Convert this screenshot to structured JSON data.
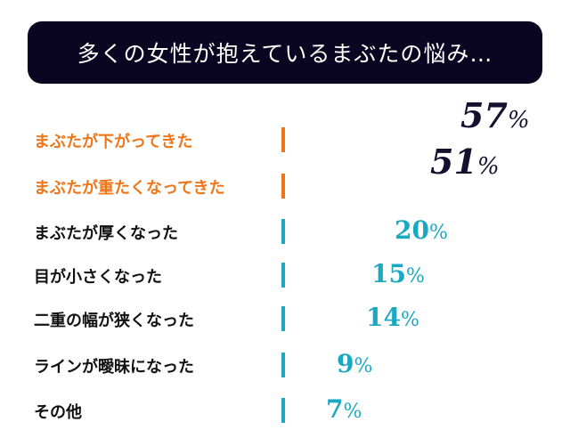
{
  "title": "多くの女性が抱えているまぶたの悩み…",
  "chart_data": {
    "type": "bar",
    "title": "多くの女性が抱えているまぶたの悩み…",
    "unit": "%",
    "categories": [
      "まぶたが下がってきた",
      "まぶたが重たくなってきた",
      "まぶたが厚くなった",
      "目が小さくなった",
      "二重の幅が狭くなった",
      "ラインが曖昧になった",
      "その他"
    ],
    "values": [
      57,
      51,
      20,
      15,
      14,
      9,
      7
    ],
    "value_labels": [
      "57",
      "51",
      "20",
      "15",
      "14",
      "9",
      "7"
    ],
    "colors": {
      "highlight": "#ee7518",
      "normal": "#1aa9c2",
      "highlight_value": "#14112e",
      "title_bg": "#0a0520"
    }
  }
}
